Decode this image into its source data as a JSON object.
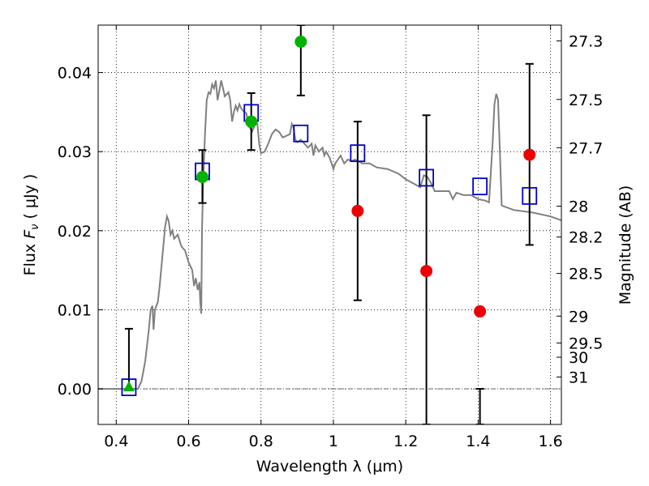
{
  "chart_data": {
    "type": "scatter",
    "xlabel": "Wavelength  λ (μm)",
    "ylabel": "Flux  F_ν  ( μJy )",
    "y2label": "Magnitude (AB)",
    "xlim": [
      0.35,
      1.63
    ],
    "ylim": [
      -0.0045,
      0.046
    ],
    "x_ticks": [
      0.4,
      0.6,
      0.8,
      1.0,
      1.2,
      1.4,
      1.6
    ],
    "x_tick_labels": [
      "0.4",
      "0.6",
      "0.8",
      "1",
      "1.2",
      "1.4",
      "1.6"
    ],
    "y_ticks": [
      0.0,
      0.01,
      0.02,
      0.03,
      0.04
    ],
    "y_tick_labels": [
      "0.00",
      "0.01",
      "0.02",
      "0.03",
      "0.04"
    ],
    "mag_ticks": [
      {
        "label": "27.3",
        "flux": 0.044
      },
      {
        "label": "27.5",
        "flux": 0.0366
      },
      {
        "label": "27.7",
        "flux": 0.0305
      },
      {
        "label": "28",
        "flux": 0.0231
      },
      {
        "label": "28.2",
        "flux": 0.0192
      },
      {
        "label": "28.5",
        "flux": 0.0146
      },
      {
        "label": "29",
        "flux": 0.0092
      },
      {
        "label": "29.5",
        "flux": 0.0058
      },
      {
        "label": "30",
        "flux": 0.004
      },
      {
        "label": "31",
        "flux": 0.0015
      }
    ],
    "grid": true,
    "colors": {
      "model": "#808080",
      "green": "#00b300",
      "red": "#ee0000",
      "blue_square": "#0000cc",
      "errorbar": "#000000"
    },
    "series": [
      {
        "marker": "line",
        "points": [
          [
            0.35,
            0.0
          ],
          [
            0.44,
            0.0
          ],
          [
            0.46,
            0.0
          ],
          [
            0.47,
            0.001
          ],
          [
            0.48,
            0.0035
          ],
          [
            0.49,
            0.0075
          ],
          [
            0.495,
            0.01
          ],
          [
            0.5,
            0.0105
          ],
          [
            0.503,
            0.0075
          ],
          [
            0.507,
            0.01
          ],
          [
            0.515,
            0.011
          ],
          [
            0.52,
            0.013
          ],
          [
            0.53,
            0.018
          ],
          [
            0.535,
            0.0205
          ],
          [
            0.54,
            0.0218
          ],
          [
            0.545,
            0.0212
          ],
          [
            0.55,
            0.0195
          ],
          [
            0.555,
            0.02
          ],
          [
            0.56,
            0.019
          ],
          [
            0.57,
            0.0195
          ],
          [
            0.58,
            0.018
          ],
          [
            0.59,
            0.0175
          ],
          [
            0.6,
            0.016
          ],
          [
            0.61,
            0.015
          ],
          [
            0.615,
            0.013
          ],
          [
            0.62,
            0.014
          ],
          [
            0.625,
            0.0125
          ],
          [
            0.63,
            0.0135
          ],
          [
            0.632,
            0.011
          ],
          [
            0.635,
            0.0095
          ],
          [
            0.637,
            0.02
          ],
          [
            0.64,
            0.026
          ],
          [
            0.645,
            0.032
          ],
          [
            0.65,
            0.0365
          ],
          [
            0.655,
            0.0375
          ],
          [
            0.66,
            0.0373
          ],
          [
            0.665,
            0.0385
          ],
          [
            0.67,
            0.038
          ],
          [
            0.675,
            0.039
          ],
          [
            0.68,
            0.0365
          ],
          [
            0.69,
            0.039
          ],
          [
            0.7,
            0.037
          ],
          [
            0.71,
            0.0375
          ],
          [
            0.715,
            0.0365
          ],
          [
            0.72,
            0.0338
          ],
          [
            0.725,
            0.035
          ],
          [
            0.73,
            0.0358
          ],
          [
            0.735,
            0.0352
          ],
          [
            0.74,
            0.036
          ],
          [
            0.745,
            0.0355
          ],
          [
            0.75,
            0.0352
          ],
          [
            0.76,
            0.0348
          ],
          [
            0.765,
            0.0332
          ],
          [
            0.77,
            0.033
          ],
          [
            0.775,
            0.0325
          ],
          [
            0.78,
            0.033
          ],
          [
            0.785,
            0.034
          ],
          [
            0.79,
            0.0335
          ],
          [
            0.795,
            0.031
          ],
          [
            0.8,
            0.0298
          ],
          [
            0.81,
            0.03
          ],
          [
            0.82,
            0.031
          ],
          [
            0.83,
            0.0322
          ],
          [
            0.84,
            0.0328
          ],
          [
            0.85,
            0.0325
          ],
          [
            0.86,
            0.0318
          ],
          [
            0.87,
            0.032
          ],
          [
            0.88,
            0.0322
          ],
          [
            0.885,
            0.0335
          ],
          [
            0.89,
            0.033
          ],
          [
            0.895,
            0.0315
          ],
          [
            0.9,
            0.0312
          ],
          [
            0.91,
            0.0315
          ],
          [
            0.92,
            0.031
          ],
          [
            0.93,
            0.0305
          ],
          [
            0.94,
            0.031
          ],
          [
            0.945,
            0.0295
          ],
          [
            0.95,
            0.0308
          ],
          [
            0.96,
            0.03
          ],
          [
            0.97,
            0.0305
          ],
          [
            0.975,
            0.0295
          ],
          [
            0.98,
            0.03
          ],
          [
            0.99,
            0.0292
          ],
          [
            1.0,
            0.0278
          ],
          [
            1.005,
            0.0285
          ],
          [
            1.02,
            0.0295
          ],
          [
            1.03,
            0.0285
          ],
          [
            1.04,
            0.029
          ],
          [
            1.05,
            0.0288
          ],
          [
            1.06,
            0.029
          ],
          [
            1.08,
            0.0285
          ],
          [
            1.1,
            0.0285
          ],
          [
            1.12,
            0.028
          ],
          [
            1.15,
            0.0278
          ],
          [
            1.18,
            0.0272
          ],
          [
            1.2,
            0.0265
          ],
          [
            1.22,
            0.026
          ],
          [
            1.24,
            0.0255
          ],
          [
            1.25,
            0.027
          ],
          [
            1.26,
            0.0268
          ],
          [
            1.27,
            0.026
          ],
          [
            1.28,
            0.025
          ],
          [
            1.3,
            0.025
          ],
          [
            1.32,
            0.025
          ],
          [
            1.33,
            0.024
          ],
          [
            1.34,
            0.0248
          ],
          [
            1.36,
            0.0245
          ],
          [
            1.38,
            0.0245
          ],
          [
            1.4,
            0.024
          ],
          [
            1.42,
            0.0238
          ],
          [
            1.43,
            0.0236
          ],
          [
            1.44,
            0.031
          ],
          [
            1.445,
            0.036
          ],
          [
            1.45,
            0.0373
          ],
          [
            1.455,
            0.0366
          ],
          [
            1.46,
            0.03
          ],
          [
            1.465,
            0.0232
          ],
          [
            1.47,
            0.0231
          ],
          [
            1.5,
            0.0226
          ],
          [
            1.55,
            0.0223
          ],
          [
            1.6,
            0.0218
          ],
          [
            1.63,
            0.0213
          ]
        ]
      },
      {
        "marker": "square",
        "points": [
          {
            "x": 0.435,
            "y": 0.0002,
            "yerr_low": 0.0,
            "yerr_high": 0.0076
          },
          {
            "x": 0.638,
            "y": 0.0275,
            "yerr_low": 0.0235,
            "yerr_high": 0.0302
          },
          {
            "x": 0.773,
            "y": 0.0349,
            "yerr_low": 0.0302,
            "yerr_high": 0.0374
          },
          {
            "x": 0.91,
            "y": 0.0323,
            "yerr_low": 0.0371,
            "yerr_high": 0.046
          },
          {
            "x": 1.067,
            "y": 0.0298,
            "yerr_low": 0.0112,
            "yerr_high": 0.0338
          },
          {
            "x": 1.257,
            "y": 0.0267,
            "yerr_low": -0.0045,
            "yerr_high": 0.0346
          },
          {
            "x": 1.405,
            "y": 0.0256,
            "yerr_low": -0.0045,
            "yerr_high": 0.0
          },
          {
            "x": 1.542,
            "y": 0.0244,
            "yerr_low": 0.0182,
            "yerr_high": 0.0411
          }
        ]
      },
      {
        "marker": "circle",
        "color_key": "green",
        "points": [
          {
            "x": 0.638,
            "y": 0.0268
          },
          {
            "x": 0.773,
            "y": 0.0338
          },
          {
            "x": 0.91,
            "y": 0.0439
          }
        ]
      },
      {
        "marker": "triangle",
        "color_key": "green",
        "points": [
          {
            "x": 0.435,
            "y": 0.0002
          }
        ]
      },
      {
        "marker": "circle",
        "color_key": "red",
        "points": [
          {
            "x": 1.067,
            "y": 0.0225
          },
          {
            "x": 1.257,
            "y": 0.0149
          },
          {
            "x": 1.405,
            "y": 0.0098
          },
          {
            "x": 1.542,
            "y": 0.0296
          }
        ]
      }
    ]
  }
}
